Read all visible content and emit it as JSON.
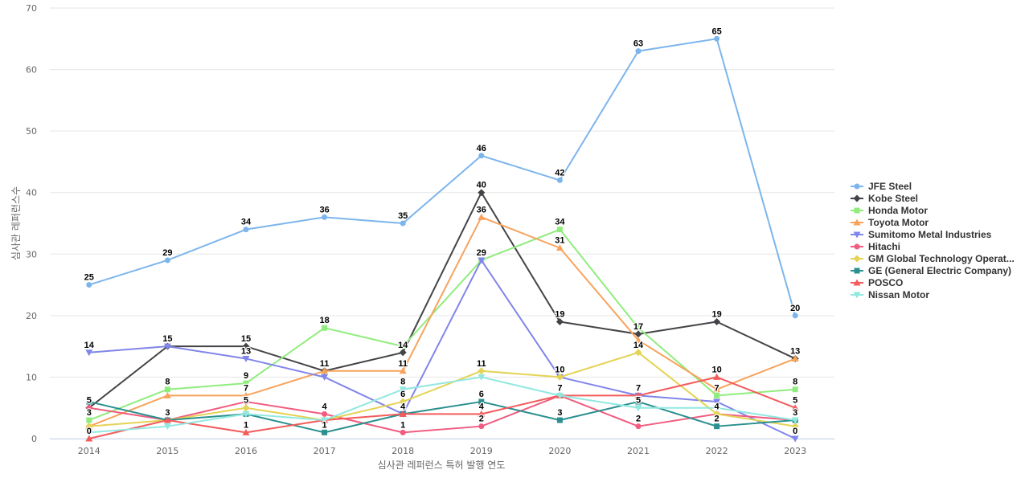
{
  "chart_data": {
    "type": "line",
    "title": "",
    "xlabel": "심사관 레퍼런스 특허 발행 연도",
    "ylabel": "심사관 레퍼런스수",
    "ylim": [
      0,
      70
    ],
    "yticks": [
      0,
      10,
      20,
      30,
      40,
      50,
      60,
      70
    ],
    "grid": true,
    "legend_position": "right",
    "x": [
      "2014",
      "2015",
      "2016",
      "2017",
      "2018",
      "2019",
      "2020",
      "2021",
      "2022",
      "2023"
    ],
    "series": [
      {
        "name": "JFE Steel",
        "color": "#7cb5ec",
        "marker": "circle",
        "values": [
          25,
          29,
          34,
          36,
          35,
          46,
          42,
          63,
          65,
          20
        ]
      },
      {
        "name": "Kobe Steel",
        "color": "#434348",
        "marker": "diamond",
        "values": [
          5,
          15,
          15,
          11,
          14,
          40,
          19,
          17,
          19,
          13
        ]
      },
      {
        "name": "Honda Motor",
        "color": "#90ed7d",
        "marker": "square",
        "values": [
          3,
          8,
          9,
          18,
          15,
          29,
          34,
          18,
          7,
          8
        ]
      },
      {
        "name": "Toyota Motor",
        "color": "#f7a35c",
        "marker": "triangle",
        "values": [
          2,
          7,
          7,
          11,
          11,
          36,
          31,
          16,
          8,
          13
        ]
      },
      {
        "name": "Sumitomo Metal Industries",
        "color": "#8085e9",
        "marker": "triangle-down",
        "values": [
          14,
          15,
          13,
          10,
          4,
          29,
          10,
          7,
          6,
          0
        ]
      },
      {
        "name": "Hitachi",
        "color": "#f15c80",
        "marker": "circle",
        "values": [
          5,
          3,
          6,
          4,
          1,
          2,
          7,
          2,
          4,
          3
        ]
      },
      {
        "name": "GM Global Technology Operat...",
        "color": "#e4d354",
        "marker": "diamond",
        "values": [
          2,
          3,
          5,
          3,
          6,
          11,
          10,
          14,
          4,
          2
        ]
      },
      {
        "name": "GE (General Electric Company)",
        "color": "#2b908f",
        "marker": "square",
        "values": [
          6,
          3,
          4,
          1,
          4,
          6,
          3,
          6,
          2,
          3
        ]
      },
      {
        "name": "POSCO",
        "color": "#f45b5b",
        "marker": "triangle",
        "values": [
          0,
          3,
          1,
          3,
          4,
          4,
          7,
          7,
          10,
          5
        ]
      },
      {
        "name": "Nissan Motor",
        "color": "#91e8e1",
        "marker": "triangle-down",
        "values": [
          1,
          2,
          4,
          3,
          8,
          10,
          7,
          5,
          5,
          3
        ]
      }
    ],
    "data_labels": [
      {
        "x": "2014",
        "y": 25,
        "text": "25"
      },
      {
        "x": "2015",
        "y": 29,
        "text": "29"
      },
      {
        "x": "2016",
        "y": 34,
        "text": "34"
      },
      {
        "x": "2017",
        "y": 36,
        "text": "36"
      },
      {
        "x": "2018",
        "y": 35,
        "text": "35"
      },
      {
        "x": "2019",
        "y": 46,
        "text": "46"
      },
      {
        "x": "2020",
        "y": 42,
        "text": "42"
      },
      {
        "x": "2021",
        "y": 63,
        "text": "63"
      },
      {
        "x": "2022",
        "y": 65,
        "text": "65"
      },
      {
        "x": "2023",
        "y": 20,
        "text": "20"
      },
      {
        "x": "2014",
        "y": 14,
        "text": "14"
      },
      {
        "x": "2015",
        "y": 15,
        "text": "15"
      },
      {
        "x": "2016",
        "y": 15,
        "text": "15"
      },
      {
        "x": "2016",
        "y": 13,
        "text": "13"
      },
      {
        "x": "2017",
        "y": 18,
        "text": "18"
      },
      {
        "x": "2018",
        "y": 14,
        "text": "14"
      },
      {
        "x": "2019",
        "y": 40,
        "text": "40"
      },
      {
        "x": "2019",
        "y": 36,
        "text": "36"
      },
      {
        "x": "2019",
        "y": 29,
        "text": "29"
      },
      {
        "x": "2020",
        "y": 34,
        "text": "34"
      },
      {
        "x": "2020",
        "y": 31,
        "text": "31"
      },
      {
        "x": "2020",
        "y": 19,
        "text": "19"
      },
      {
        "x": "2021",
        "y": 17,
        "text": "17"
      },
      {
        "x": "2021",
        "y": 14,
        "text": "14"
      },
      {
        "x": "2022",
        "y": 19,
        "text": "19"
      },
      {
        "x": "2022",
        "y": 10,
        "text": "10"
      },
      {
        "x": "2023",
        "y": 13,
        "text": "13"
      },
      {
        "x": "2014",
        "y": 5,
        "text": "5"
      },
      {
        "x": "2014",
        "y": 3,
        "text": "3"
      },
      {
        "x": "2014",
        "y": 0,
        "text": "0"
      },
      {
        "x": "2015",
        "y": 8,
        "text": "8"
      },
      {
        "x": "2015",
        "y": 3,
        "text": "3"
      },
      {
        "x": "2016",
        "y": 9,
        "text": "9"
      },
      {
        "x": "2016",
        "y": 7,
        "text": "7"
      },
      {
        "x": "2016",
        "y": 5,
        "text": "5"
      },
      {
        "x": "2016",
        "y": 1,
        "text": "1"
      },
      {
        "x": "2017",
        "y": 11,
        "text": "11"
      },
      {
        "x": "2017",
        "y": 4,
        "text": "4"
      },
      {
        "x": "2017",
        "y": 1,
        "text": "1"
      },
      {
        "x": "2018",
        "y": 11,
        "text": "11"
      },
      {
        "x": "2018",
        "y": 8,
        "text": "8"
      },
      {
        "x": "2018",
        "y": 6,
        "text": "6"
      },
      {
        "x": "2018",
        "y": 4,
        "text": "4"
      },
      {
        "x": "2018",
        "y": 1,
        "text": "1"
      },
      {
        "x": "2019",
        "y": 11,
        "text": "11"
      },
      {
        "x": "2019",
        "y": 6,
        "text": "6"
      },
      {
        "x": "2019",
        "y": 4,
        "text": "4"
      },
      {
        "x": "2019",
        "y": 2,
        "text": "2"
      },
      {
        "x": "2020",
        "y": 10,
        "text": "10"
      },
      {
        "x": "2020",
        "y": 7,
        "text": "7"
      },
      {
        "x": "2020",
        "y": 3,
        "text": "3"
      },
      {
        "x": "2021",
        "y": 7,
        "text": "7"
      },
      {
        "x": "2021",
        "y": 5,
        "text": "5"
      },
      {
        "x": "2021",
        "y": 2,
        "text": "2"
      },
      {
        "x": "2022",
        "y": 7,
        "text": "7"
      },
      {
        "x": "2022",
        "y": 4,
        "text": "4"
      },
      {
        "x": "2022",
        "y": 2,
        "text": "2"
      },
      {
        "x": "2023",
        "y": 8,
        "text": "8"
      },
      {
        "x": "2023",
        "y": 5,
        "text": "5"
      },
      {
        "x": "2023",
        "y": 3,
        "text": "3"
      },
      {
        "x": "2023",
        "y": 0,
        "text": "0"
      }
    ]
  }
}
